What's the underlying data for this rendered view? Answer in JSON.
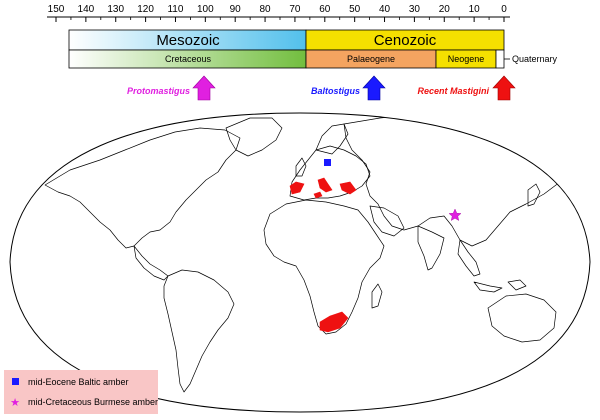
{
  "timescale": {
    "ticks": [
      "150",
      "140",
      "130",
      "120",
      "110",
      "100",
      "90",
      "80",
      "70",
      "60",
      "50",
      "40",
      "30",
      "20",
      "10",
      "0"
    ]
  },
  "eras": {
    "mesozoic": "Mesozoic",
    "cenozoic": "Cenozoic"
  },
  "periods": {
    "cretaceous": "Cretaceous",
    "palaeogene": "Palaeogene",
    "neogene": "Neogene",
    "quaternary": "Quaternary"
  },
  "arrows": [
    {
      "label": "Protomastigus",
      "color": "#e020e0",
      "age_ma": 100
    },
    {
      "label": "Baltostigus",
      "color": "#1a1aff",
      "age_ma": 45
    },
    {
      "label": "Recent Mastigini",
      "color": "#ee1111",
      "age_ma": 0
    }
  ],
  "legend": {
    "baltic": "mid-Eocene Baltic amber",
    "burmese": "mid-Cretaceous Burmese amber"
  },
  "colors": {
    "mesozoic_band": "#5bc4e8",
    "cenozoic_band": "#f5e000",
    "cretaceous_band": "#7cc142",
    "palaeogene_band": "#f4a460",
    "neogene_band": "#f5e000",
    "distribution": "#ee1111",
    "baltic_marker": "#1a1aff",
    "burmese_marker": "#e020e0",
    "legend_bg": "#f9c6c6"
  }
}
